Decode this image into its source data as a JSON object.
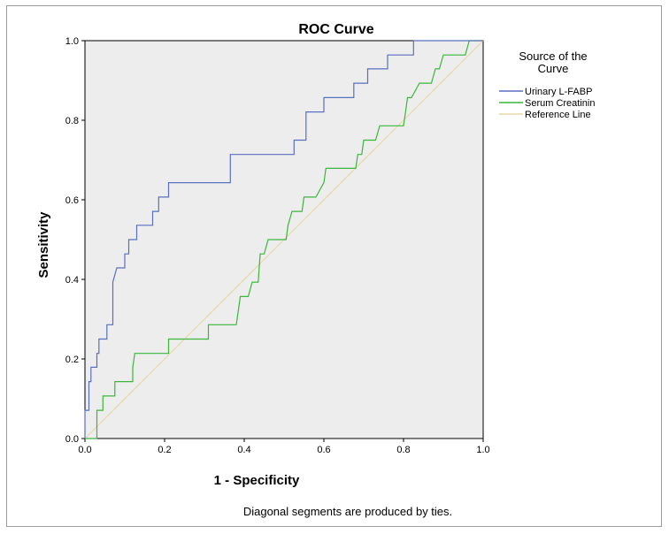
{
  "chart_data": {
    "type": "line",
    "title": "ROC Curve",
    "xlabel": "1 - Specificity",
    "ylabel": "Sensitivity",
    "xlim": [
      0,
      1
    ],
    "ylim": [
      0,
      1
    ],
    "x_ticks": [
      "0.0",
      "0.2",
      "0.4",
      "0.6",
      "0.8",
      "1.0"
    ],
    "y_ticks": [
      "0.0",
      "0.2",
      "0.4",
      "0.6",
      "0.8",
      "1.0"
    ],
    "legend_title": "Source of the Curve",
    "legend_position": "right",
    "footnote": "Diagonal segments are produced by ties.",
    "series": [
      {
        "name": "Urinary L-FABP",
        "color": "#5b6fbf",
        "points": [
          [
            0,
            0
          ],
          [
            0,
            0.071
          ],
          [
            0.01,
            0.071
          ],
          [
            0.01,
            0.143
          ],
          [
            0.015,
            0.143
          ],
          [
            0.015,
            0.179
          ],
          [
            0.03,
            0.179
          ],
          [
            0.03,
            0.214
          ],
          [
            0.035,
            0.214
          ],
          [
            0.035,
            0.25
          ],
          [
            0.055,
            0.25
          ],
          [
            0.055,
            0.286
          ],
          [
            0.07,
            0.286
          ],
          [
            0.07,
            0.393
          ],
          [
            0.08,
            0.429
          ],
          [
            0.1,
            0.429
          ],
          [
            0.1,
            0.464
          ],
          [
            0.11,
            0.464
          ],
          [
            0.11,
            0.5
          ],
          [
            0.13,
            0.5
          ],
          [
            0.13,
            0.536
          ],
          [
            0.17,
            0.536
          ],
          [
            0.17,
            0.571
          ],
          [
            0.185,
            0.571
          ],
          [
            0.185,
            0.607
          ],
          [
            0.21,
            0.607
          ],
          [
            0.21,
            0.643
          ],
          [
            0.365,
            0.643
          ],
          [
            0.365,
            0.714
          ],
          [
            0.525,
            0.714
          ],
          [
            0.525,
            0.75
          ],
          [
            0.555,
            0.75
          ],
          [
            0.555,
            0.821
          ],
          [
            0.6,
            0.821
          ],
          [
            0.6,
            0.857
          ],
          [
            0.675,
            0.857
          ],
          [
            0.675,
            0.893
          ],
          [
            0.71,
            0.893
          ],
          [
            0.71,
            0.929
          ],
          [
            0.76,
            0.929
          ],
          [
            0.76,
            0.964
          ],
          [
            0.825,
            0.964
          ],
          [
            0.825,
            1.0
          ],
          [
            1.0,
            1.0
          ]
        ]
      },
      {
        "name": "Serum Creatinin",
        "color": "#3cb63c",
        "points": [
          [
            0,
            0
          ],
          [
            0.03,
            0
          ],
          [
            0.03,
            0.071
          ],
          [
            0.045,
            0.071
          ],
          [
            0.045,
            0.107
          ],
          [
            0.075,
            0.107
          ],
          [
            0.075,
            0.143
          ],
          [
            0.12,
            0.143
          ],
          [
            0.12,
            0.179
          ],
          [
            0.125,
            0.214
          ],
          [
            0.21,
            0.214
          ],
          [
            0.21,
            0.25
          ],
          [
            0.31,
            0.25
          ],
          [
            0.31,
            0.286
          ],
          [
            0.38,
            0.286
          ],
          [
            0.385,
            0.321
          ],
          [
            0.39,
            0.357
          ],
          [
            0.41,
            0.357
          ],
          [
            0.42,
            0.393
          ],
          [
            0.435,
            0.393
          ],
          [
            0.44,
            0.464
          ],
          [
            0.45,
            0.464
          ],
          [
            0.46,
            0.5
          ],
          [
            0.505,
            0.5
          ],
          [
            0.51,
            0.536
          ],
          [
            0.52,
            0.571
          ],
          [
            0.545,
            0.571
          ],
          [
            0.55,
            0.607
          ],
          [
            0.58,
            0.607
          ],
          [
            0.6,
            0.643
          ],
          [
            0.605,
            0.679
          ],
          [
            0.68,
            0.679
          ],
          [
            0.685,
            0.714
          ],
          [
            0.695,
            0.714
          ],
          [
            0.7,
            0.75
          ],
          [
            0.73,
            0.75
          ],
          [
            0.74,
            0.786
          ],
          [
            0.8,
            0.786
          ],
          [
            0.805,
            0.821
          ],
          [
            0.81,
            0.857
          ],
          [
            0.82,
            0.857
          ],
          [
            0.84,
            0.893
          ],
          [
            0.87,
            0.893
          ],
          [
            0.88,
            0.929
          ],
          [
            0.89,
            0.929
          ],
          [
            0.9,
            0.964
          ],
          [
            0.955,
            0.964
          ],
          [
            0.965,
            1.0
          ],
          [
            1.0,
            1.0
          ]
        ]
      },
      {
        "name": "Reference Line",
        "color": "#e6d9a8",
        "points": [
          [
            0,
            0
          ],
          [
            1,
            1
          ]
        ]
      }
    ]
  }
}
